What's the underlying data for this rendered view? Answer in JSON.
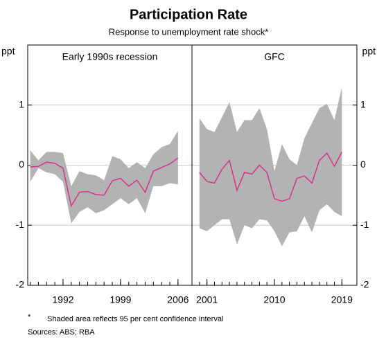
{
  "title": "Participation Rate",
  "subtitle": "Response to unemployment rate shock*",
  "footnote": {
    "marker": "*",
    "text": "Shaded area reflects 95 per cent confidence interval"
  },
  "sources": "Sources: ABS; RBA",
  "chart_data": [
    {
      "type": "line",
      "title": "Early 1990s recession",
      "ylabel": "ppt",
      "x": [
        1988,
        1989,
        1990,
        1991,
        1992,
        1993,
        1994,
        1995,
        1996,
        1997,
        1998,
        1999,
        2000,
        2001,
        2002,
        2003,
        2004,
        2005,
        2006
      ],
      "series": [
        {
          "color": "#d6338a",
          "values": [
            -0.03,
            -0.02,
            0.05,
            0.03,
            -0.05,
            -0.68,
            -0.45,
            -0.44,
            -0.49,
            -0.5,
            -0.26,
            -0.22,
            -0.35,
            -0.25,
            -0.45,
            -0.1,
            -0.04,
            0.02,
            0.12
          ]
        }
      ],
      "band": {
        "color": "#b3b3b3",
        "upper": [
          0.25,
          0.08,
          0.22,
          0.22,
          0.2,
          -0.35,
          -0.1,
          -0.15,
          -0.17,
          -0.25,
          0.15,
          0.1,
          -0.05,
          0.05,
          -0.05,
          0.18,
          0.3,
          0.35,
          0.57
        ],
        "lower": [
          -0.28,
          -0.05,
          -0.12,
          -0.15,
          -0.28,
          -0.97,
          -0.78,
          -0.7,
          -0.8,
          -0.75,
          -0.65,
          -0.55,
          -0.65,
          -0.55,
          -0.8,
          -0.35,
          -0.35,
          -0.3,
          -0.32
        ]
      },
      "xlim": [
        1987.7,
        2007.7
      ],
      "xticks": [
        1992,
        1999,
        2006
      ],
      "ylim": [
        -2,
        2
      ],
      "yticks": [
        -2,
        -1,
        0,
        1
      ],
      "grid": true,
      "yaxis_side": "left"
    },
    {
      "type": "line",
      "title": "GFC",
      "ylabel": "ppt",
      "x": [
        2000,
        2001,
        2002,
        2003,
        2004,
        2005,
        2006,
        2007,
        2008,
        2009,
        2010,
        2011,
        2012,
        2013,
        2014,
        2015,
        2016,
        2017,
        2018,
        2019
      ],
      "series": [
        {
          "color": "#d6338a",
          "values": [
            -0.12,
            -0.27,
            -0.3,
            -0.07,
            0.08,
            -0.42,
            -0.12,
            -0.15,
            0.0,
            -0.12,
            -0.56,
            -0.6,
            -0.56,
            -0.22,
            -0.18,
            -0.3,
            0.08,
            0.2,
            -0.02,
            0.22
          ]
        }
      ],
      "band": {
        "color": "#b3b3b3",
        "upper": [
          0.78,
          0.6,
          0.55,
          0.8,
          1.05,
          0.55,
          0.75,
          0.75,
          0.95,
          0.6,
          -0.1,
          0.35,
          0.1,
          0.0,
          0.45,
          0.7,
          0.95,
          1.02,
          0.75,
          1.3
        ],
        "lower": [
          -1.05,
          -1.1,
          -1.0,
          -0.9,
          -0.9,
          -1.32,
          -1.0,
          -1.05,
          -0.9,
          -0.92,
          -1.1,
          -1.35,
          -1.12,
          -1.1,
          -0.85,
          -1.12,
          -0.75,
          -0.65,
          -0.78,
          -0.85
        ]
      },
      "xlim": [
        1999,
        2021
      ],
      "xticks": [
        2001,
        2010,
        2019
      ],
      "ylim": [
        -2,
        2
      ],
      "yticks": [
        -2,
        -1,
        0,
        1
      ],
      "grid": true,
      "yaxis_side": "right"
    }
  ]
}
